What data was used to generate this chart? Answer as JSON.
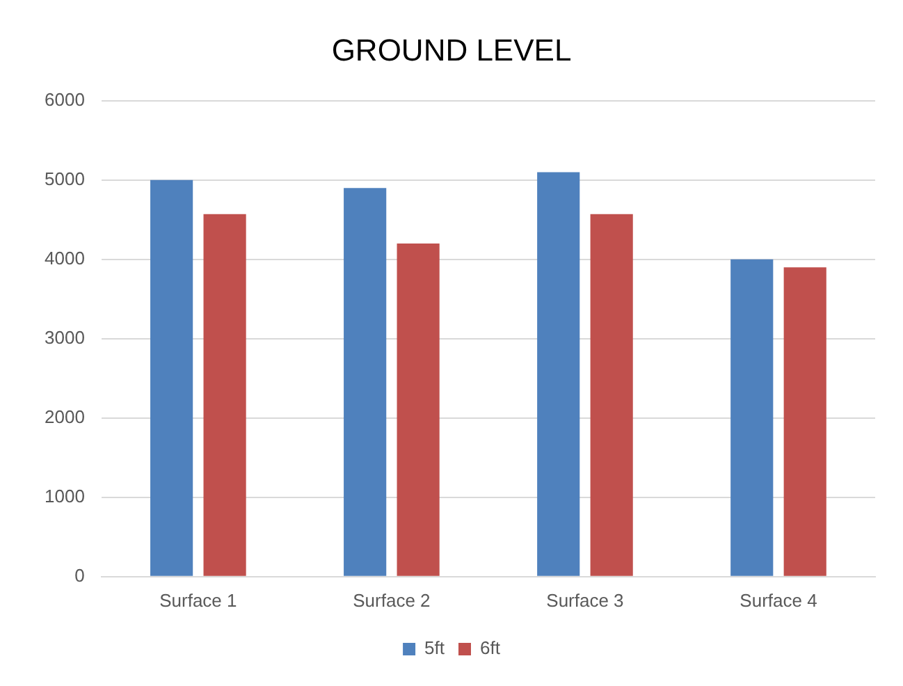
{
  "chart_data": {
    "type": "bar",
    "title": "GROUND LEVEL",
    "categories": [
      "Surface 1",
      "Surface 2",
      "Surface 3",
      "Surface 4"
    ],
    "series": [
      {
        "name": "5ft",
        "color": "#4f81bd",
        "values": [
          5000,
          4900,
          5100,
          4000
        ]
      },
      {
        "name": "6ft",
        "color": "#c0504d",
        "values": [
          4570,
          4200,
          4570,
          3900
        ]
      }
    ],
    "ylim": [
      0,
      6000
    ],
    "yticks": [
      0,
      1000,
      2000,
      3000,
      4000,
      5000,
      6000
    ],
    "grid": "y",
    "legend": "bottom"
  }
}
